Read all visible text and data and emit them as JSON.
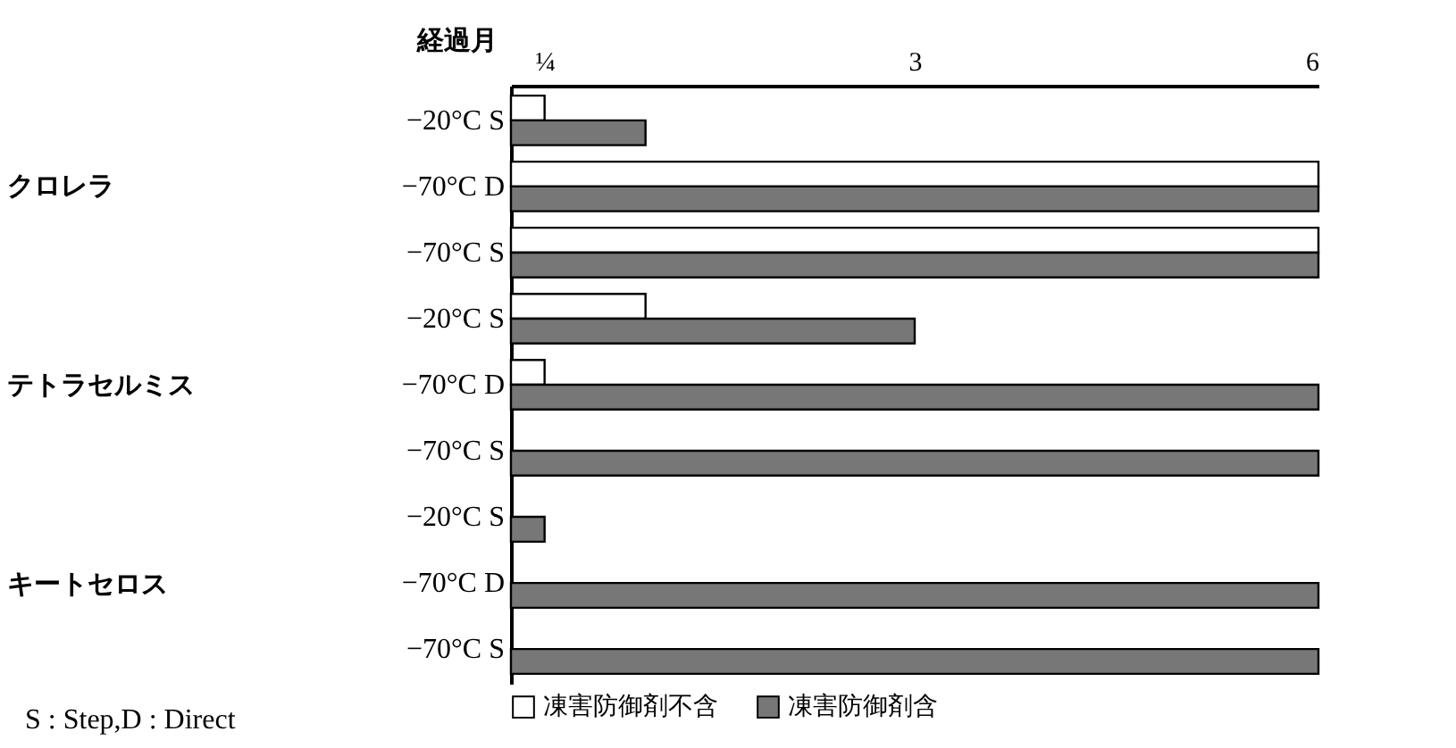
{
  "chart_data": {
    "type": "bar",
    "orientation": "horizontal",
    "xlabel": "経過月",
    "categories": [
      "−20°C S",
      "−70°C D",
      "−70°C S",
      "−20°C S",
      "−70°C D",
      "−70°C S",
      "−20°C S",
      "−70°C D",
      "−70°C S"
    ],
    "series": [
      {
        "name": "凍害防御剤不含",
        "color": "#ffffff",
        "values": [
          0.25,
          6,
          6,
          1,
          0.25,
          null,
          null,
          null,
          null
        ]
      },
      {
        "name": "凍害防御剤含",
        "color": "#777777",
        "values": [
          1,
          6,
          6,
          3,
          6,
          6,
          0.25,
          6,
          6
        ]
      }
    ],
    "xlim": [
      0,
      6
    ],
    "xticks": [
      {
        "value": 0.25,
        "label": "¼"
      },
      3,
      6
    ],
    "annotations": [
      "クロレラ",
      "テトラセルミス",
      "キートセロス",
      "S : Step,D : Direct"
    ],
    "legend": "bottom"
  }
}
